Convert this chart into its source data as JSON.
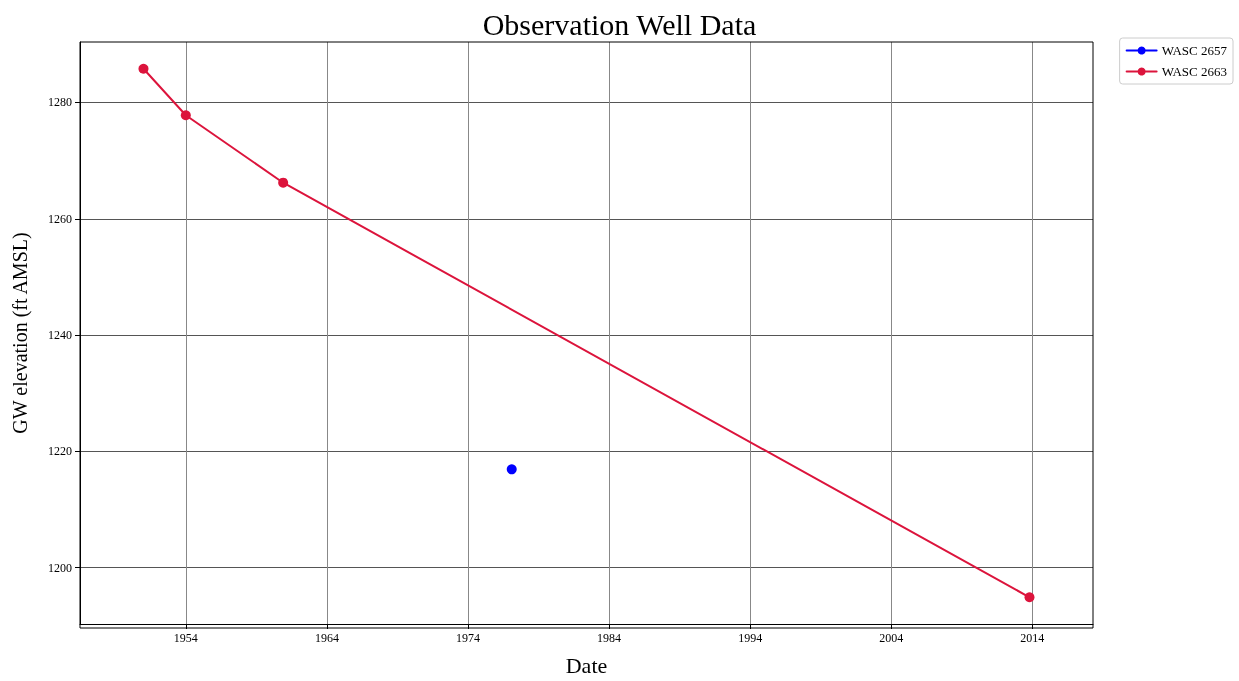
{
  "chart_data": {
    "type": "line",
    "title": "Observation Well Data",
    "xlabel": "Date",
    "ylabel": "GW elevation (ft AMSL)",
    "xlim": [
      1946.5,
      2018.3
    ],
    "xticks": [
      1954,
      1964,
      1974,
      1984,
      1994,
      2004,
      2014
    ],
    "ylim": [
      1190.3,
      1290.4
    ],
    "yticks": [
      1200,
      1220,
      1240,
      1260,
      1280
    ],
    "series": [
      {
        "name": "WASC 2657",
        "color": "#0000ff",
        "x": [
          1977.1
        ],
        "values": [
          1216.9
        ]
      },
      {
        "name": "WASC 2663",
        "color": "#dc143c",
        "x": [
          1951.0,
          1954.0,
          1960.9,
          2013.8
        ],
        "values": [
          1285.8,
          1277.8,
          1266.2,
          1194.9
        ]
      }
    ],
    "grid": true,
    "legend": "top right",
    "marker": "circle",
    "line_style": "solid"
  }
}
